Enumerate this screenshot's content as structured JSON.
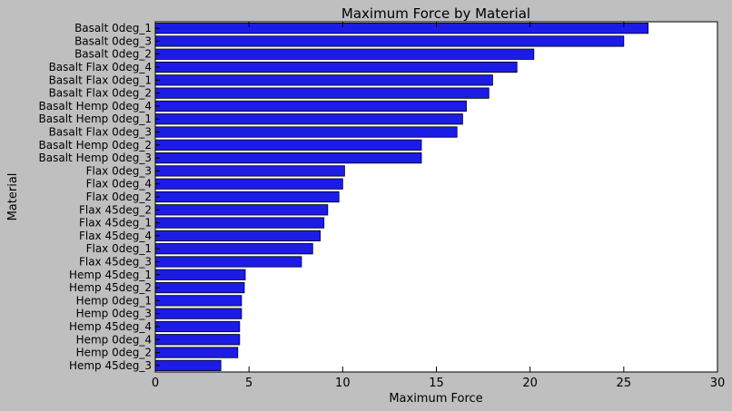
{
  "chart_data": {
    "type": "bar",
    "orientation": "horizontal",
    "title": "Maximum Force by Material",
    "xlabel": "Maximum Force",
    "ylabel": "Material",
    "xlim": [
      0,
      30
    ],
    "xticks": [
      0,
      5,
      10,
      15,
      20,
      25,
      30
    ],
    "grid": false,
    "bar_color": "#1c1ce6",
    "background_color": "#bfbfbf",
    "categories": [
      "Basalt 0deg_1",
      "Basalt 0deg_3",
      "Basalt 0deg_2",
      "Basalt Flax 0deg_4",
      "Basalt Flax 0deg_1",
      "Basalt Flax 0deg_2",
      "Basalt Hemp 0deg_4",
      "Basalt Hemp 0deg_1",
      "Basalt Flax 0deg_3",
      "Basalt Hemp 0deg_2",
      "Basalt Hemp 0deg_3",
      "Flax 0deg_3",
      "Flax 0deg_4",
      "Flax 0deg_2",
      "Flax 45deg_2",
      "Flax 45deg_1",
      "Flax 45deg_4",
      "Flax 0deg_1",
      "Flax 45deg_3",
      "Hemp 45deg_1",
      "Hemp 45deg_2",
      "Hemp 0deg_1",
      "Hemp 0deg_3",
      "Hemp 45deg_4",
      "Hemp 0deg_4",
      "Hemp 0deg_2",
      "Hemp 45deg_3"
    ],
    "values": [
      26.3,
      25.0,
      20.2,
      19.3,
      18.0,
      17.8,
      16.6,
      16.4,
      16.1,
      14.2,
      14.2,
      10.1,
      10.0,
      9.8,
      9.2,
      9.0,
      8.8,
      8.4,
      7.8,
      4.8,
      4.75,
      4.6,
      4.6,
      4.5,
      4.5,
      4.4,
      3.5
    ]
  }
}
